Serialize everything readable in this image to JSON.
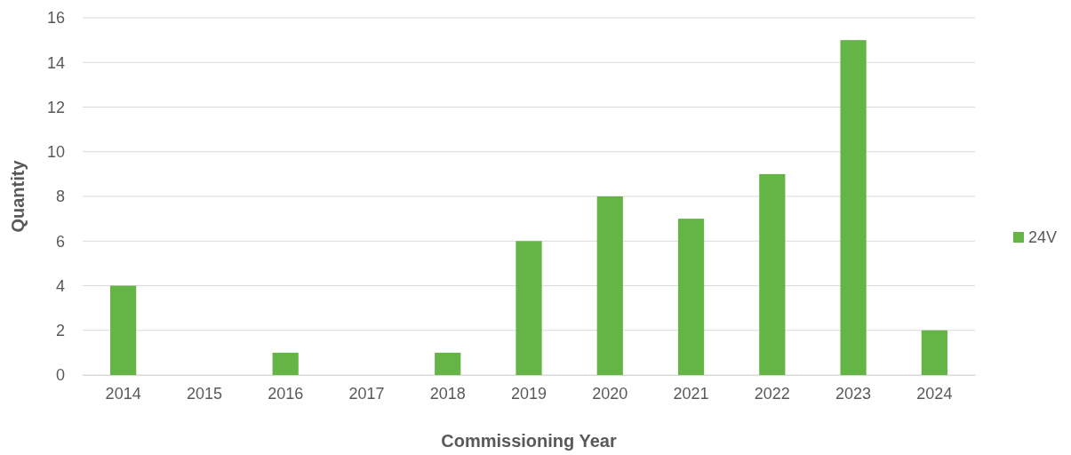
{
  "chart_data": {
    "type": "bar",
    "xlabel": "Commissioning Year",
    "ylabel": "Quantity",
    "categories": [
      "2014",
      "2015",
      "2016",
      "2017",
      "2018",
      "2019",
      "2020",
      "2021",
      "2022",
      "2023",
      "2024"
    ],
    "series": [
      {
        "name": "24V",
        "color": "#65b446",
        "values": [
          4,
          0,
          1,
          0,
          1,
          6,
          8,
          7,
          9,
          15,
          2
        ]
      }
    ],
    "ylim": [
      0,
      16
    ],
    "yticks": [
      0,
      2,
      4,
      6,
      8,
      10,
      12,
      14,
      16
    ],
    "grid": "y",
    "legend": "right"
  }
}
